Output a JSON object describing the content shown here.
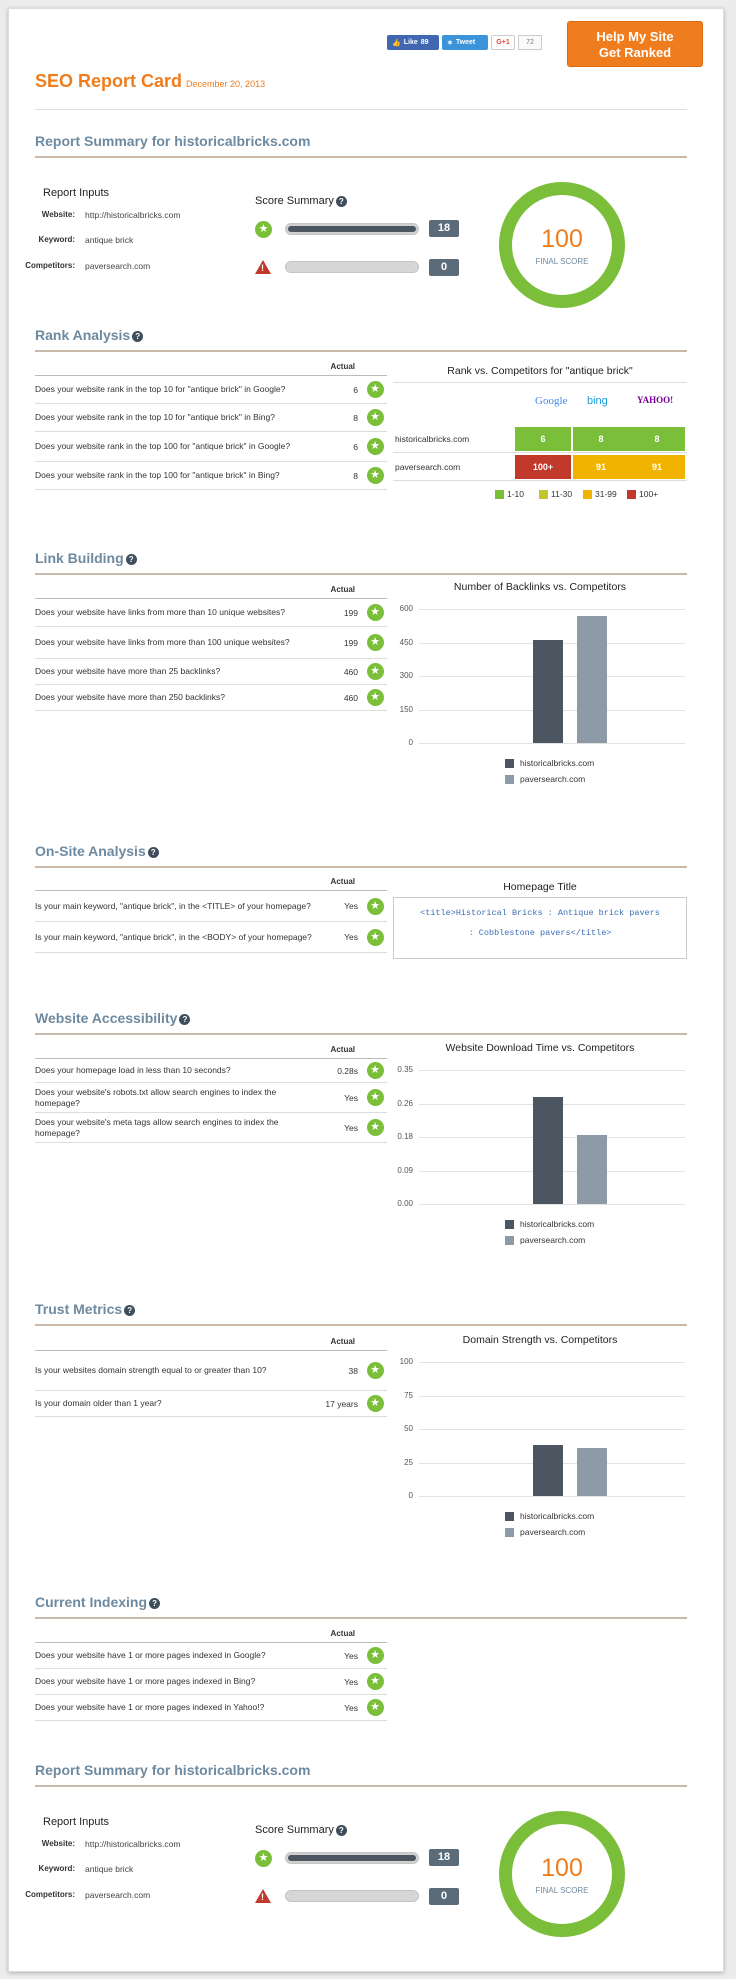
{
  "header": {
    "like_label": "Like",
    "like_count": "89",
    "tweet_label": "Tweet",
    "gplus_label": "G+1",
    "gplus_count": "72",
    "help_line1": "Help My Site",
    "help_line2": "Get Ranked",
    "title": "SEO Report Card",
    "date": "December 20, 2013"
  },
  "summary": {
    "title": "Report Summary for historicalbricks.com",
    "inputs_title": "Report Inputs",
    "website_label": "Website:",
    "website": "http://historicalbricks.com",
    "keyword_label": "Keyword:",
    "keyword": "antique brick",
    "competitors_label": "Competitors:",
    "competitors": "paversearch.com",
    "score_title": "Score Summary",
    "pass_count": "18",
    "fail_count": "0",
    "pass_fraction": 1.0,
    "fail_fraction": 0.0,
    "final_score": "100",
    "final_label": "FINAL SCORE"
  },
  "rank": {
    "title": "Rank Analysis",
    "actual_label": "Actual",
    "rows": [
      {
        "q": "Does your website rank in the top 10 for \"antique brick\" in Google?",
        "v": "6"
      },
      {
        "q": "Does your website rank in the top 10 for \"antique brick\" in Bing?",
        "v": "8"
      },
      {
        "q": "Does your website rank in the top 100 for \"antique brick\" in Google?",
        "v": "6"
      },
      {
        "q": "Does your website rank in the top 100 for \"antique brick\" in Bing?",
        "v": "8"
      }
    ],
    "chart_title": "Rank vs. Competitors for \"antique brick\"",
    "engines": [
      "Google",
      "bing",
      "YAHOO!"
    ],
    "sites": [
      {
        "name": "historicalbricks.com",
        "cells": [
          "6",
          "8",
          "8"
        ],
        "colors": [
          "#7bbe3a",
          "#7bbe3a",
          "#7bbe3a"
        ]
      },
      {
        "name": "paversearch.com",
        "cells": [
          "100+",
          "91",
          "91"
        ],
        "colors": [
          "#c0392b",
          "#f0b400",
          "#f0b400"
        ]
      }
    ],
    "legend": [
      {
        "label": "1-10",
        "color": "#7bbe3a"
      },
      {
        "label": "11-30",
        "color": "#c2c62a"
      },
      {
        "label": "31-99",
        "color": "#f0b400"
      },
      {
        "label": "100+",
        "color": "#c0392b"
      }
    ]
  },
  "links": {
    "title": "Link Building",
    "actual_label": "Actual",
    "rows": [
      {
        "q": "Does your website have links from more than 10 unique websites?",
        "v": "199"
      },
      {
        "q": "Does your website have links from more than 100 unique websites?",
        "v": "199"
      },
      {
        "q": "Does your website have more than 25 backlinks?",
        "v": "460"
      },
      {
        "q": "Does your website have more than 250 backlinks?",
        "v": "460"
      }
    ]
  },
  "onsite": {
    "title": "On-Site Analysis",
    "actual_label": "Actual",
    "rows": [
      {
        "q": "Is your main keyword, \"antique brick\", in the <TITLE> of your homepage?",
        "v": "Yes"
      },
      {
        "q": "Is your main keyword, \"antique brick\", in the <BODY> of your homepage?",
        "v": "Yes"
      }
    ],
    "box_title": "Homepage Title",
    "code_line1": "<title>Historical Bricks : Antique brick pavers",
    "code_line2": ": Cobblestone pavers</title>"
  },
  "access": {
    "title": "Website Accessibility",
    "actual_label": "Actual",
    "rows": [
      {
        "q": "Does your homepage load in less than 10 seconds?",
        "v": "0.28s"
      },
      {
        "q": "Does your website's robots.txt allow search engines to index the homepage?",
        "v": "Yes"
      },
      {
        "q": "Does your website's meta tags allow search engines to index the homepage?",
        "v": "Yes"
      }
    ]
  },
  "trust": {
    "title": "Trust Metrics",
    "actual_label": "Actual",
    "rows": [
      {
        "q": "Is your websites domain strength equal to or greater than 10?",
        "v": "38"
      },
      {
        "q": "Is your domain older than 1 year?",
        "v": "17 years"
      }
    ]
  },
  "indexing": {
    "title": "Current Indexing",
    "actual_label": "Actual",
    "rows": [
      {
        "q": "Does your website have 1 or more pages indexed in Google?",
        "v": "Yes"
      },
      {
        "q": "Does your website have 1 or more pages indexed in Bing?",
        "v": "Yes"
      },
      {
        "q": "Does your website have 1 or more pages indexed in Yahoo!?",
        "v": "Yes"
      }
    ]
  },
  "colors": {
    "dark_bar": "#4b5661",
    "light_bar": "#8e9aa6",
    "accent": "#f07d1d",
    "pass": "#7bbe3a"
  },
  "chart_data": [
    {
      "type": "bar",
      "title": "Number of Backlinks vs. Competitors",
      "categories": [
        "historicalbricks.com",
        "paversearch.com"
      ],
      "values": [
        460,
        570
      ],
      "ylim": [
        0,
        600
      ],
      "yticks": [
        "0",
        "150",
        "300",
        "450",
        "600"
      ]
    },
    {
      "type": "bar",
      "title": "Website Download Time vs. Competitors",
      "categories": [
        "historicalbricks.com",
        "paversearch.com"
      ],
      "values": [
        0.28,
        0.18
      ],
      "ylim": [
        0,
        0.35
      ],
      "yticks": [
        "0.00",
        "0.09",
        "0.18",
        "0.26",
        "0.35"
      ]
    },
    {
      "type": "bar",
      "title": "Domain Strength vs. Competitors",
      "categories": [
        "historicalbricks.com",
        "paversearch.com"
      ],
      "values": [
        38,
        36
      ],
      "ylim": [
        0,
        100
      ],
      "yticks": [
        "0",
        "25",
        "50",
        "75",
        "100"
      ]
    }
  ]
}
